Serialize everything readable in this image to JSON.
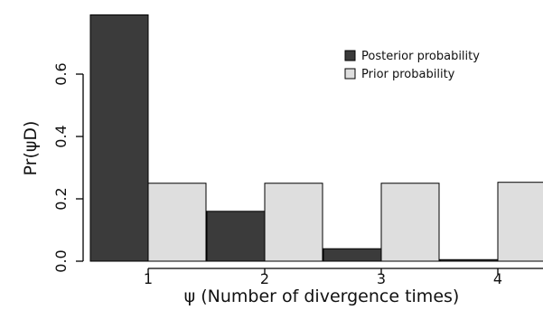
{
  "chart_data": {
    "type": "bar",
    "xlabel": "ψ (Number of divergence times)",
    "ylabel": "Pr(ψD)",
    "categories": [
      "1",
      "2",
      "3",
      "4"
    ],
    "series": [
      {
        "name": "Posterior probability",
        "color": "#3b3b3b",
        "values": [
          0.79,
          0.16,
          0.04,
          0.005
        ]
      },
      {
        "name": "Prior probability",
        "color": "#dedede",
        "values": [
          0.25,
          0.25,
          0.25,
          0.253
        ]
      }
    ],
    "ylim": [
      0,
      0.8
    ],
    "yticks": [
      "0.0",
      "0.2",
      "0.4",
      "0.6"
    ],
    "legend_position": "top-right",
    "grid": false
  }
}
